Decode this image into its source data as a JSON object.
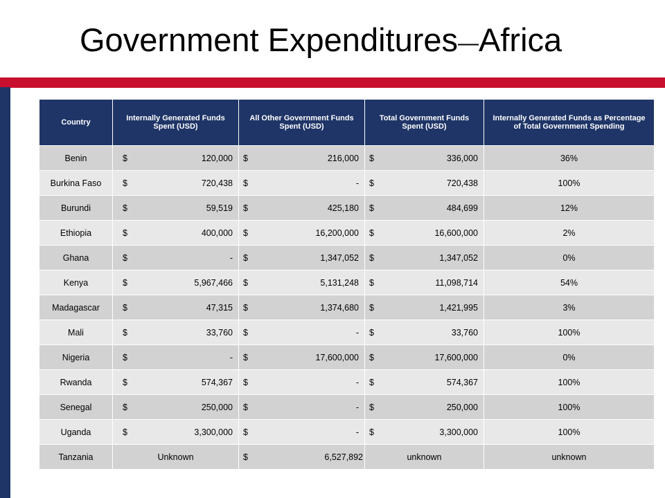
{
  "title": {
    "main": "Government Expenditures",
    "dash": "—",
    "region": "Africa"
  },
  "table": {
    "headers": [
      "Country",
      "Internally Generated Funds Spent (USD)",
      "All Other Government Funds Spent (USD)",
      "Total Government Funds Spent (USD)",
      "Internally Generated Funds as Percentage of Total Government Spending"
    ],
    "rows": [
      {
        "country": "Benin",
        "internal": "120,000",
        "other": "216,000",
        "total": "336,000",
        "pct": "36%"
      },
      {
        "country": "Burkina Faso",
        "internal": "720,438",
        "other": "-",
        "total": "720,438",
        "pct": "100%"
      },
      {
        "country": "Burundi",
        "internal": "59,519",
        "other": "425,180",
        "total": "484,699",
        "pct": "12%"
      },
      {
        "country": "Ethiopia",
        "internal": "400,000",
        "other": "16,200,000",
        "total": "16,600,000",
        "pct": "2%"
      },
      {
        "country": "Ghana",
        "internal": "-",
        "other": "1,347,052",
        "total": "1,347,052",
        "pct": "0%"
      },
      {
        "country": "Kenya",
        "internal": "5,967,466",
        "other": "5,131,248",
        "total": "11,098,714",
        "pct": "54%"
      },
      {
        "country": "Madagascar",
        "internal": "47,315",
        "other": "1,374,680",
        "total": "1,421,995",
        "pct": "3%"
      },
      {
        "country": "Mali",
        "internal": "33,760",
        "other": "-",
        "total": "33,760",
        "pct": "100%"
      },
      {
        "country": "Nigeria",
        "internal": "-",
        "other": "17,600,000",
        "total": "17,600,000",
        "pct": "0%"
      },
      {
        "country": "Rwanda",
        "internal": "574,367",
        "other": "-",
        "total": "574,367",
        "pct": "100%"
      },
      {
        "country": "Senegal",
        "internal": "250,000",
        "other": "-",
        "total": "250,000",
        "pct": "100%"
      },
      {
        "country": "Uganda",
        "internal": "3,300,000",
        "other": "-",
        "total": "3,300,000",
        "pct": "100%"
      }
    ],
    "last_row": {
      "country": "Tanzania",
      "internal": "Unknown",
      "other": "6,527,892",
      "total": "unknown",
      "pct": "unknown"
    },
    "currency_symbol": "$"
  },
  "colors": {
    "header_bg": "#1f3567",
    "accent_red": "#c8102e",
    "row_dark": "#d2d2d2",
    "row_light": "#e8e8e8"
  }
}
